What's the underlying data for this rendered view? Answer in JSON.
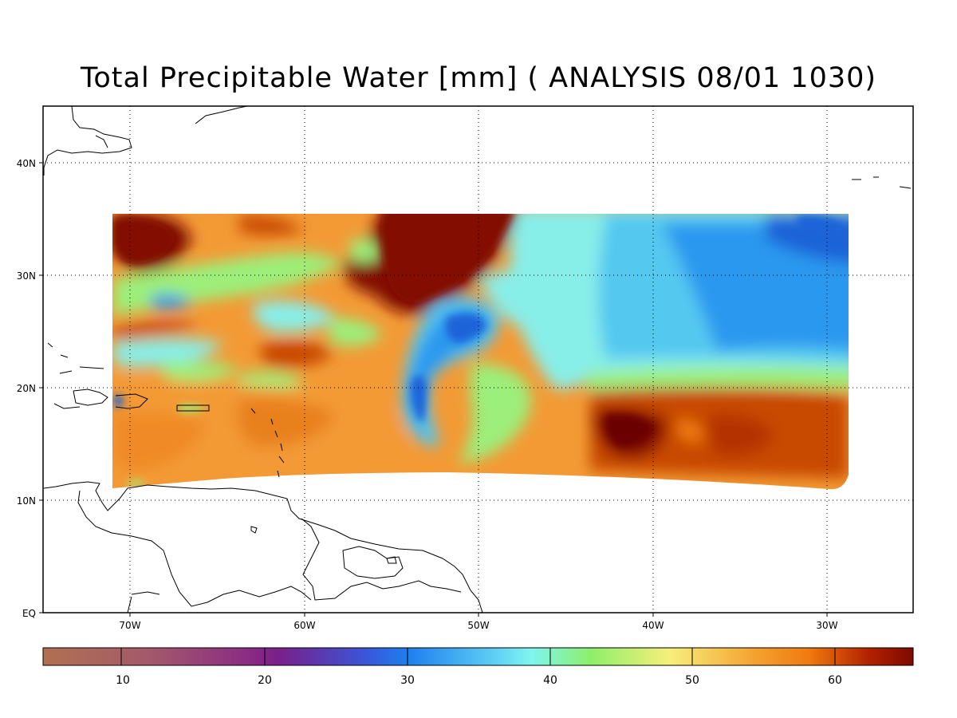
{
  "title": "Total Precipitable Water [mm]  ( ANALYSIS 08/01 1030)",
  "map": {
    "lon_labels": [
      "70W",
      "60W",
      "50W",
      "40W",
      "30W"
    ],
    "lat_labels": [
      "EQ",
      "10N",
      "20N",
      "30N",
      "40N"
    ],
    "lon_range": [
      -75,
      -25
    ],
    "lat_range": [
      0,
      45
    ],
    "grid": "dotted"
  },
  "colorbar": {
    "tick_labels": [
      "10",
      "20",
      "30",
      "40",
      "50",
      "60"
    ],
    "range": [
      4,
      66
    ],
    "colors": {
      "low": "#b07050",
      "purple": "#7a1f8a",
      "blue": "#1e7fef",
      "cyan": "#7ff5f0",
      "green": "#8fef6a",
      "yellow": "#f7ef7a",
      "orange": "#f07a10",
      "high": "#7d0a00"
    }
  },
  "field_colors": {
    "dark_red": "#820a00",
    "red_orange": "#c84a05",
    "orange": "#f39a35",
    "light_orange": "#f8c070",
    "yellow": "#f5ef8a",
    "green": "#9cef7a",
    "cyan": "#88eee8",
    "light_blue": "#55c8f0",
    "blue": "#2c98ef",
    "deep_blue": "#1f64d8"
  }
}
